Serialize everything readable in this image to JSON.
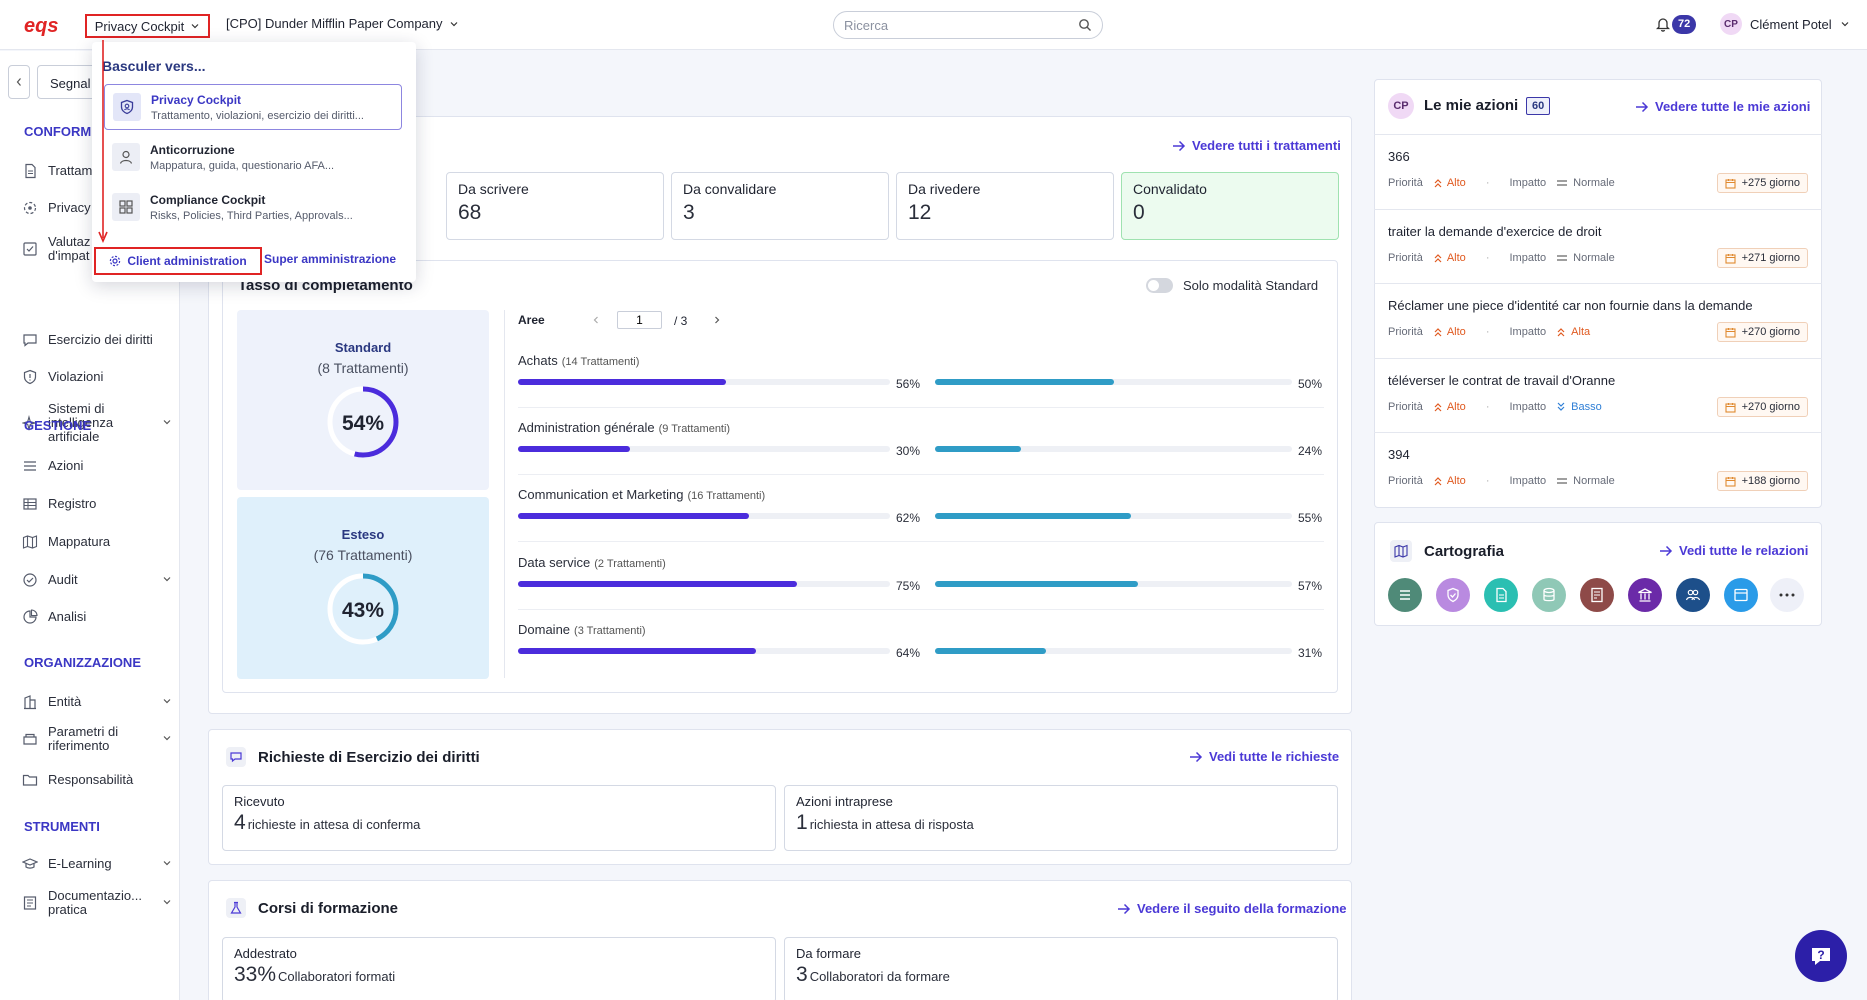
{
  "header": {
    "app_switch": "Privacy Cockpit",
    "company": "[CPO] Dunder Mifflin Paper Company",
    "search_placeholder": "Ricerca",
    "notifications": "72",
    "user_initials": "CP",
    "user_name": "Clément Potel"
  },
  "sidebar": {
    "segnal_label": "Segnal",
    "sections": {
      "conformita": "CONFORMI",
      "gestione": "GESTIONE",
      "organizzazione": "ORGANIZZAZIONE",
      "strumenti": "STRUMENTI"
    },
    "items": {
      "trattamenti": "Trattam",
      "privacy": "Privacy",
      "valutazioni": "Valutaz d'impat",
      "esercizio": "Esercizio dei diritti",
      "violazioni": "Violazioni",
      "sistemi_ia": "Sistemi di intelligenza artificiale",
      "azioni": "Azioni",
      "registro": "Registro",
      "mappatura": "Mappatura",
      "audit": "Audit",
      "analisi": "Analisi",
      "entita": "Entità",
      "parametri": "Parametri di riferimento",
      "responsabilita": "Responsabilità",
      "elearning": "E-Learning",
      "documentazione": "Documentazio... pratica"
    }
  },
  "dropdown": {
    "title": "Basculer vers...",
    "items": [
      {
        "name": "Privacy Cockpit",
        "desc": "Trattamento, violazioni, esercizio dei diritti..."
      },
      {
        "name": "Anticorruzione",
        "desc": "Mappatura, guida, questionario AFA..."
      },
      {
        "name": "Compliance Cockpit",
        "desc": "Risks, Policies, Third Parties, Approvals..."
      }
    ],
    "client_admin": "Client administration",
    "super_admin": "Super amministrazione"
  },
  "trattamenti": {
    "link": "Vedere tutti i trattamenti",
    "stats": [
      {
        "label": "Da scrivere",
        "value": "68"
      },
      {
        "label": "Da convalidare",
        "value": "3"
      },
      {
        "label": "Da rivedere",
        "value": "12"
      },
      {
        "label": "Convalidato",
        "value": "0"
      }
    ]
  },
  "completamento": {
    "title": "Tasso di completamento",
    "toggle_label": "Solo modalità Standard",
    "standard": {
      "title": "Standard",
      "sub": "(8 Trattamenti)",
      "pct_label": "54%",
      "pct": 54
    },
    "esteso": {
      "title": "Esteso",
      "sub": "(76 Trattamenti)",
      "pct_label": "43%",
      "pct": 43
    },
    "areas_label": "Aree",
    "page": "1",
    "page_total": "/ 3",
    "areas": [
      {
        "name": "Achats",
        "count": "(14 Trattamenti)",
        "p1": 56,
        "p1_label": "56%",
        "p2": 50,
        "p2_label": "50%"
      },
      {
        "name": "Administration générale",
        "count": "(9 Trattamenti)",
        "p1": 30,
        "p1_label": "30%",
        "p2": 24,
        "p2_label": "24%"
      },
      {
        "name": "Communication et Marketing",
        "count": "(16 Trattamenti)",
        "p1": 62,
        "p1_label": "62%",
        "p2": 55,
        "p2_label": "55%"
      },
      {
        "name": "Data service",
        "count": "(2 Trattamenti)",
        "p1": 75,
        "p1_label": "75%",
        "p2": 57,
        "p2_label": "57%"
      },
      {
        "name": "Domaine",
        "count": "(3 Trattamenti)",
        "p1": 64,
        "p1_label": "64%",
        "p2": 31,
        "p2_label": "31%"
      }
    ]
  },
  "richieste": {
    "title": "Richieste di Esercizio dei diritti",
    "link": "Vedi tutte le richieste",
    "boxes": [
      {
        "label": "Ricevuto",
        "big": "4",
        "sub": "richieste in attesa di conferma"
      },
      {
        "label": "Azioni intraprese",
        "big": "1",
        "sub": "richiesta in attesa di risposta"
      }
    ]
  },
  "corsi": {
    "title": "Corsi di formazione",
    "link": "Vedere il seguito della formazione",
    "boxes": [
      {
        "label": "Addestrato",
        "big": "33%",
        "sub": "Collaboratori formati"
      },
      {
        "label": "Da formare",
        "big": "3",
        "sub": "Collaboratori da formare"
      }
    ]
  },
  "azioni": {
    "initials": "CP",
    "title": "Le mie azioni",
    "count": "60",
    "link": "Vedere tutte le mie azioni",
    "priority_label": "Priorità",
    "impact_label": "Impatto",
    "items": [
      {
        "title": "366",
        "priority": "Alto",
        "impact": "Normale",
        "days": "+275 giorno"
      },
      {
        "title": "traiter la demande d'exercice de droit",
        "priority": "Alto",
        "impact": "Normale",
        "days": "+271 giorno"
      },
      {
        "title": "Réclamer une piece d'identité car non fournie dans la demande",
        "priority": "Alto",
        "impact": "Alta",
        "days": "+270 giorno"
      },
      {
        "title": "téléverser le contrat de travail d'Oranne",
        "priority": "Alto",
        "impact": "Basso",
        "days": "+270 giorno"
      },
      {
        "title": "394",
        "priority": "Alto",
        "impact": "Normale",
        "days": "+188 giorno"
      }
    ]
  },
  "cartografia": {
    "title": "Cartografia",
    "link": "Vedi tutte le relazioni",
    "icons": [
      {
        "name": "list-icon",
        "color": "#4f8a78"
      },
      {
        "name": "shield-check-icon",
        "color": "#b98ae0"
      },
      {
        "name": "document-icon",
        "color": "#2bbfb2"
      },
      {
        "name": "database-icon",
        "color": "#8fc8b6"
      },
      {
        "name": "certificate-icon",
        "color": "#8e4a48"
      },
      {
        "name": "institution-icon",
        "color": "#6b2aa8"
      },
      {
        "name": "people-icon",
        "color": "#1d4f8a"
      },
      {
        "name": "browser-icon",
        "color": "#2a9be8"
      }
    ]
  }
}
